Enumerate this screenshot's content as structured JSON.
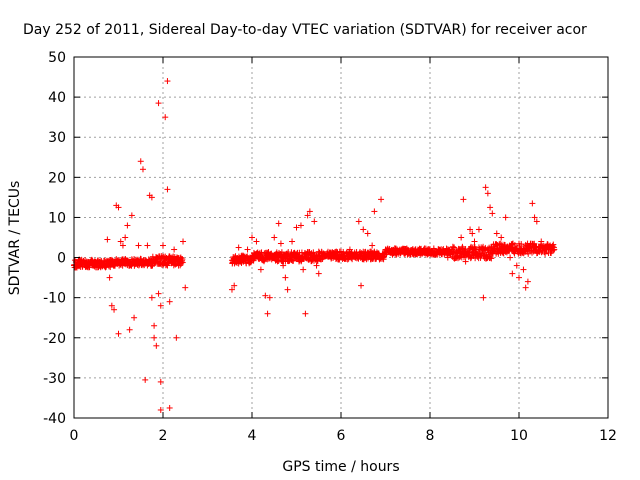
{
  "chart_data": {
    "type": "scatter",
    "title": "Day 252 of 2011, Sidereal Day-to-day VTEC variation (SDTVAR) for receiver acor",
    "xlabel": "GPS time / hours",
    "ylabel": "SDTVAR / TECUs",
    "xlim": [
      0,
      12
    ],
    "ylim": [
      -40,
      50
    ],
    "xticks": [
      "0",
      "2",
      "4",
      "6",
      "8",
      "10",
      "12"
    ],
    "yticks": [
      "-40",
      "-30",
      "-20",
      "-10",
      "0",
      "10",
      "20",
      "30",
      "40",
      "50"
    ],
    "grid": true,
    "marker": "+",
    "color": "#ff0000",
    "band_segments": [
      {
        "x_start": 0.0,
        "x_end": 0.95,
        "y_center": -1.5,
        "spread": 1.0
      },
      {
        "x_start": 0.95,
        "x_end": 1.75,
        "y_center": -1.2,
        "spread": 0.9
      },
      {
        "x_start": 1.75,
        "x_end": 2.45,
        "y_center": -0.8,
        "spread": 1.2
      },
      {
        "x_start": 3.55,
        "x_end": 4.0,
        "y_center": -0.5,
        "spread": 1.0
      },
      {
        "x_start": 4.0,
        "x_end": 5.5,
        "y_center": 0.2,
        "spread": 1.2
      },
      {
        "x_start": 5.5,
        "x_end": 7.0,
        "y_center": 0.5,
        "spread": 1.0
      },
      {
        "x_start": 7.0,
        "x_end": 8.5,
        "y_center": 1.5,
        "spread": 0.8
      },
      {
        "x_start": 8.5,
        "x_end": 9.4,
        "y_center": 1.2,
        "spread": 1.5
      },
      {
        "x_start": 9.4,
        "x_end": 10.8,
        "y_center": 2.2,
        "spread": 1.3
      }
    ],
    "outliers": [
      [
        0.75,
        4.5
      ],
      [
        0.8,
        -5
      ],
      [
        0.85,
        -12
      ],
      [
        0.9,
        -13
      ],
      [
        0.95,
        13
      ],
      [
        1.0,
        -19
      ],
      [
        1.0,
        12.5
      ],
      [
        1.05,
        4
      ],
      [
        1.1,
        3
      ],
      [
        1.15,
        5
      ],
      [
        1.2,
        8
      ],
      [
        1.25,
        -18
      ],
      [
        1.3,
        10.5
      ],
      [
        1.35,
        -15
      ],
      [
        1.45,
        3
      ],
      [
        1.5,
        24
      ],
      [
        1.55,
        22
      ],
      [
        1.6,
        -30.5
      ],
      [
        1.65,
        3
      ],
      [
        1.7,
        15.5
      ],
      [
        1.75,
        -10
      ],
      [
        1.75,
        15
      ],
      [
        1.8,
        -17
      ],
      [
        1.8,
        -20
      ],
      [
        1.85,
        -22
      ],
      [
        1.9,
        38.5
      ],
      [
        1.9,
        -9
      ],
      [
        1.95,
        -38
      ],
      [
        1.95,
        -31
      ],
      [
        1.95,
        -12
      ],
      [
        2.0,
        3
      ],
      [
        2.05,
        35
      ],
      [
        2.1,
        44
      ],
      [
        2.1,
        17
      ],
      [
        2.15,
        -37.5
      ],
      [
        2.15,
        -11
      ],
      [
        2.2,
        0
      ],
      [
        2.25,
        2
      ],
      [
        2.3,
        -20
      ],
      [
        2.35,
        -2
      ],
      [
        2.45,
        4
      ],
      [
        2.5,
        -7.5
      ],
      [
        3.55,
        -8
      ],
      [
        3.6,
        -7
      ],
      [
        3.7,
        2.5
      ],
      [
        3.8,
        -1
      ],
      [
        3.9,
        2
      ],
      [
        4.0,
        5
      ],
      [
        4.1,
        4
      ],
      [
        4.2,
        -3
      ],
      [
        4.3,
        -9.5
      ],
      [
        4.35,
        -14
      ],
      [
        4.4,
        -10
      ],
      [
        4.5,
        5
      ],
      [
        4.6,
        8.5
      ],
      [
        4.65,
        3.5
      ],
      [
        4.7,
        -2
      ],
      [
        4.75,
        -5
      ],
      [
        4.8,
        -8
      ],
      [
        4.9,
        4
      ],
      [
        5.0,
        7.5
      ],
      [
        5.1,
        8
      ],
      [
        5.15,
        -3
      ],
      [
        5.2,
        -14
      ],
      [
        5.25,
        10.5
      ],
      [
        5.3,
        11.5
      ],
      [
        5.4,
        9
      ],
      [
        5.45,
        -2
      ],
      [
        5.5,
        -4
      ],
      [
        5.6,
        0.5
      ],
      [
        5.8,
        1
      ],
      [
        6.0,
        1.5
      ],
      [
        6.2,
        2
      ],
      [
        6.4,
        9
      ],
      [
        6.45,
        -7
      ],
      [
        6.5,
        7
      ],
      [
        6.6,
        6
      ],
      [
        6.7,
        3
      ],
      [
        6.75,
        11.5
      ],
      [
        6.9,
        14.5
      ],
      [
        7.0,
        2
      ],
      [
        8.4,
        0
      ],
      [
        8.5,
        2
      ],
      [
        8.7,
        5
      ],
      [
        8.75,
        14.5
      ],
      [
        8.8,
        -1
      ],
      [
        8.9,
        7
      ],
      [
        8.95,
        6
      ],
      [
        9.0,
        4
      ],
      [
        9.1,
        7
      ],
      [
        9.2,
        -10
      ],
      [
        9.25,
        17.5
      ],
      [
        9.3,
        16
      ],
      [
        9.35,
        12.5
      ],
      [
        9.4,
        11
      ],
      [
        9.5,
        6
      ],
      [
        9.6,
        5
      ],
      [
        9.7,
        10
      ],
      [
        9.8,
        0
      ],
      [
        9.85,
        -4
      ],
      [
        9.9,
        1
      ],
      [
        9.95,
        -2
      ],
      [
        10.0,
        -5
      ],
      [
        10.1,
        -3
      ],
      [
        10.15,
        -7.5
      ],
      [
        10.2,
        -6
      ],
      [
        10.3,
        13.5
      ],
      [
        10.35,
        10
      ],
      [
        10.4,
        9
      ],
      [
        10.5,
        4
      ],
      [
        10.7,
        3
      ]
    ]
  }
}
